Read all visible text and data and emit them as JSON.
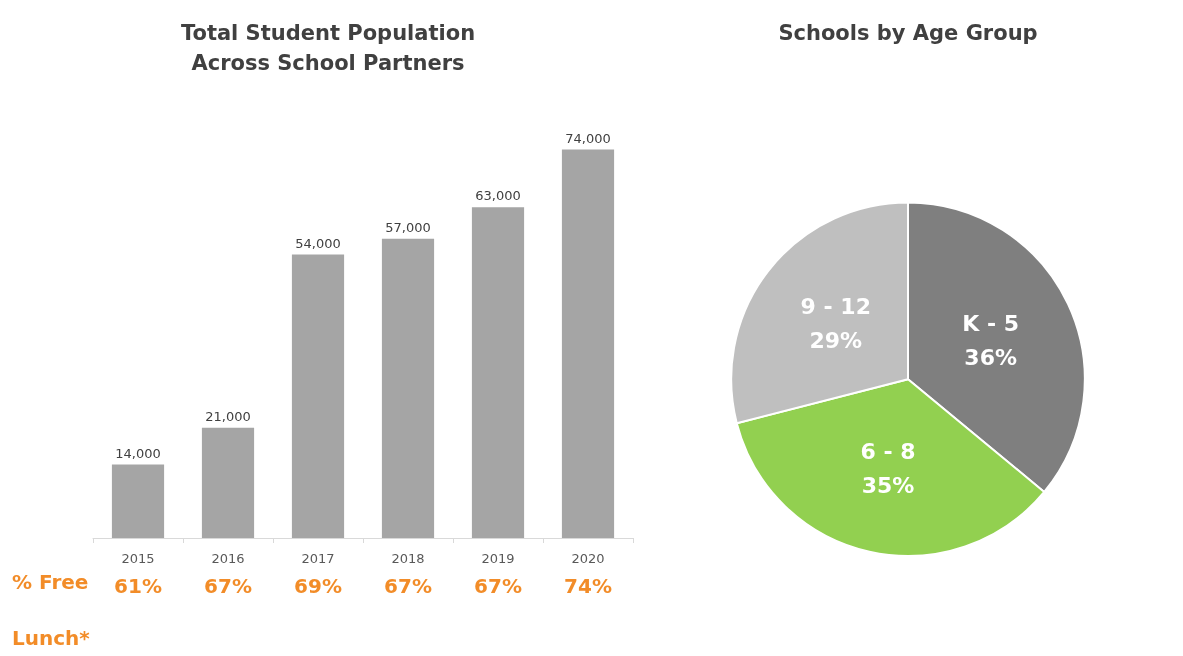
{
  "chart_data": [
    {
      "type": "bar",
      "title": "Total Student Population\nAcross School Partners",
      "categories": [
        "2015",
        "2016",
        "2017",
        "2018",
        "2019",
        "2020"
      ],
      "values": [
        14000,
        21000,
        54000,
        57000,
        63000,
        74000
      ],
      "color": "#a5a5a5",
      "value_labels": [
        "14,000",
        "21,000",
        "54,000",
        "57,000",
        "63,000",
        "74,000"
      ],
      "legend": false,
      "annotations": [
        "% Free Lunch*",
        "61%",
        "67%",
        "69%",
        "67%",
        "67%",
        "74%"
      ]
    },
    {
      "type": "pie",
      "title": "Schools by Age Group",
      "categories": [
        "K - 5",
        "6 - 8",
        "9 - 12"
      ],
      "values": [
        36,
        35,
        29
      ],
      "colors": [
        "#7f7f7f",
        "#92d050",
        "#bfbfbf"
      ],
      "value_labels": [
        "36%",
        "35%",
        "29%"
      ],
      "legend": false
    }
  ]
}
